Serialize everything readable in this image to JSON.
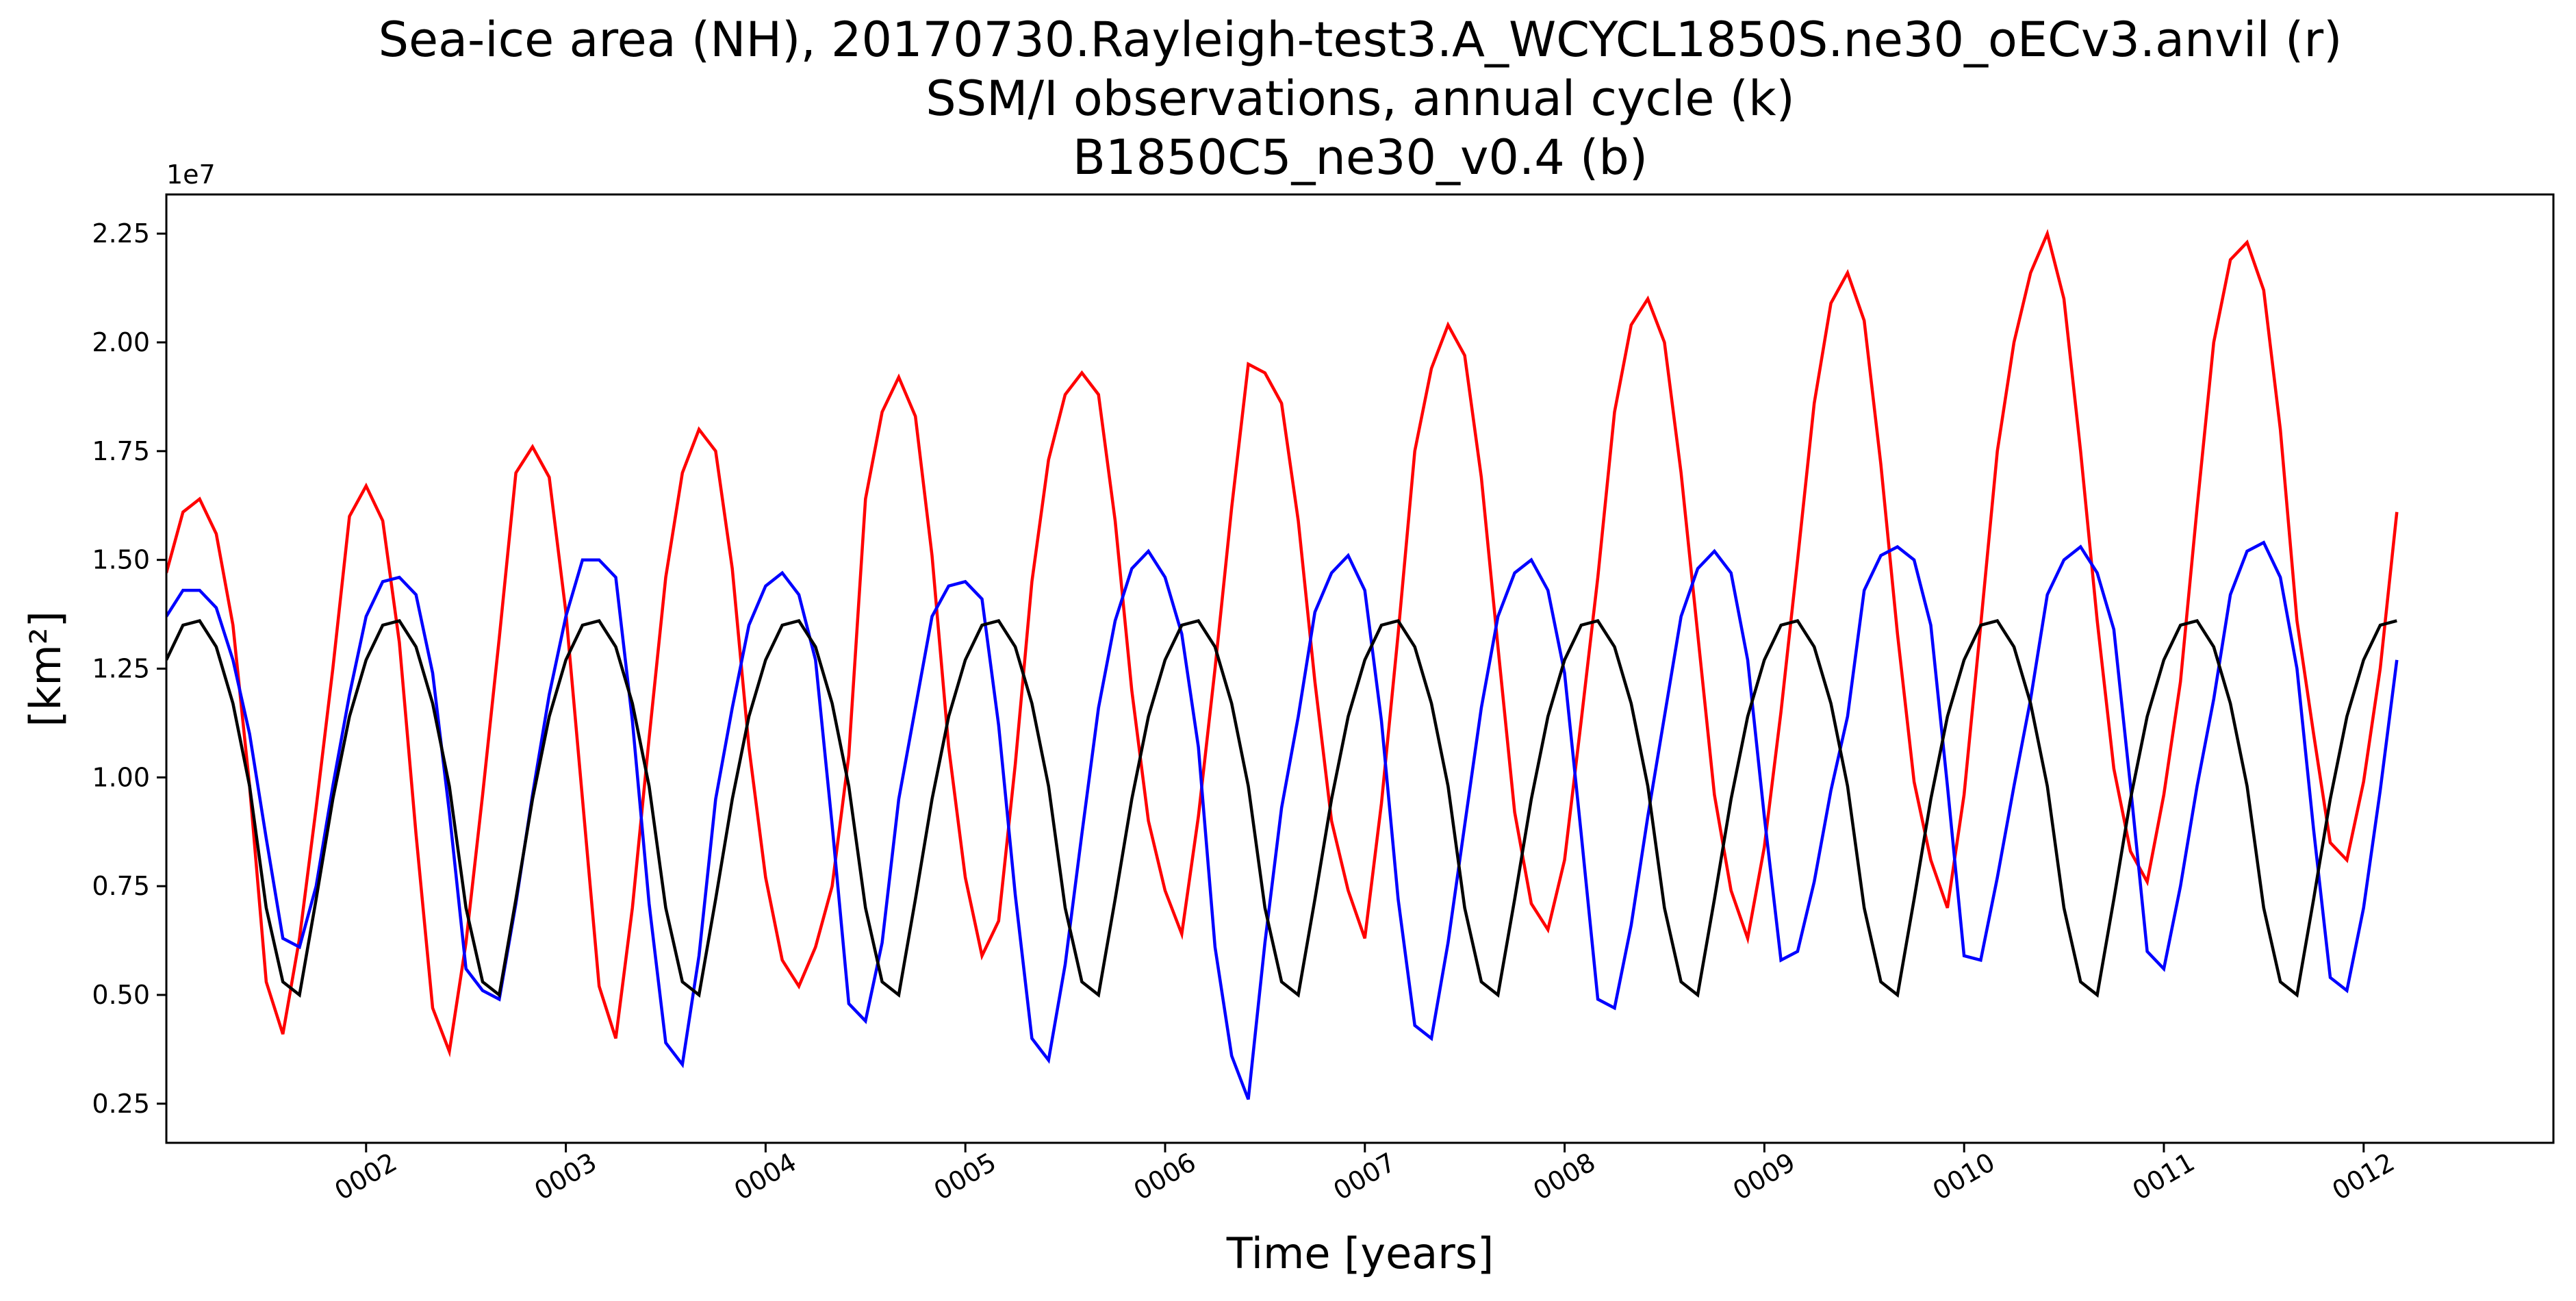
{
  "chart_data": {
    "type": "line",
    "title_lines": [
      "Sea-ice area (NH), 20170730.Rayleigh-test3.A_WCYCL1850S.ne30_oECv3.anvil (r)",
      "SSM/I observations, annual cycle (k)",
      "B1850C5_ne30_v0.4 (b)"
    ],
    "xlabel": "Time [years]",
    "ylabel": "[km²]",
    "y_offset_label": "1e7",
    "y_scale": 10000000,
    "xlim": [
      1.0,
      12.95
    ],
    "ylim": [
      0.16,
      2.34
    ],
    "grid": false,
    "x_ticks": [
      {
        "value": 2,
        "label": "0002"
      },
      {
        "value": 3,
        "label": "0003"
      },
      {
        "value": 4,
        "label": "0004"
      },
      {
        "value": 5,
        "label": "0005"
      },
      {
        "value": 6,
        "label": "0006"
      },
      {
        "value": 7,
        "label": "0007"
      },
      {
        "value": 8,
        "label": "0008"
      },
      {
        "value": 9,
        "label": "0009"
      },
      {
        "value": 10,
        "label": "0010"
      },
      {
        "value": 11,
        "label": "0011"
      },
      {
        "value": 12,
        "label": "0012"
      }
    ],
    "y_ticks": [
      {
        "value": 0.25,
        "label": "0.25"
      },
      {
        "value": 0.5,
        "label": "0.50"
      },
      {
        "value": 0.75,
        "label": "0.75"
      },
      {
        "value": 1.0,
        "label": "1.00"
      },
      {
        "value": 1.25,
        "label": "1.25"
      },
      {
        "value": 1.5,
        "label": "1.50"
      },
      {
        "value": 1.75,
        "label": "1.75"
      },
      {
        "value": 2.0,
        "label": "2.00"
      },
      {
        "value": 2.25,
        "label": "2.25"
      }
    ],
    "x_start": 1.0,
    "x_step": 0.08333,
    "series": [
      {
        "color": "#ff0000",
        "values": [
          1.47,
          1.61,
          1.64,
          1.56,
          1.35,
          0.98,
          0.53,
          0.41,
          0.63,
          0.93,
          1.25,
          1.6,
          1.67,
          1.59,
          1.31,
          0.87,
          0.47,
          0.37,
          0.62,
          0.96,
          1.32,
          1.7,
          1.76,
          1.69,
          1.38,
          0.95,
          0.52,
          0.4,
          0.7,
          1.09,
          1.46,
          1.7,
          1.8,
          1.75,
          1.48,
          1.07,
          0.77,
          0.58,
          0.52,
          0.61,
          0.75,
          1.05,
          1.64,
          1.84,
          1.92,
          1.83,
          1.51,
          1.07,
          0.77,
          0.59,
          0.67,
          1.03,
          1.45,
          1.73,
          1.88,
          1.93,
          1.88,
          1.59,
          1.2,
          0.9,
          0.74,
          0.64,
          0.91,
          1.25,
          1.62,
          1.95,
          1.93,
          1.86,
          1.59,
          1.22,
          0.9,
          0.74,
          0.63,
          0.94,
          1.33,
          1.75,
          1.94,
          2.04,
          1.97,
          1.69,
          1.3,
          0.92,
          0.71,
          0.65,
          0.81,
          1.13,
          1.46,
          1.84,
          2.04,
          2.1,
          2.0,
          1.7,
          1.33,
          0.96,
          0.74,
          0.63,
          0.84,
          1.15,
          1.5,
          1.86,
          2.09,
          2.16,
          2.05,
          1.72,
          1.33,
          0.99,
          0.81,
          0.7,
          0.96,
          1.35,
          1.75,
          2.0,
          2.16,
          2.25,
          2.1,
          1.75,
          1.36,
          1.02,
          0.83,
          0.76,
          0.96,
          1.22,
          1.62,
          2.0,
          2.19,
          2.23,
          2.12,
          1.8,
          1.36,
          1.1,
          0.85,
          0.81,
          0.99,
          1.25,
          1.61
        ]
      },
      {
        "color": "#0000ff",
        "values": [
          1.37,
          1.43,
          1.43,
          1.39,
          1.27,
          1.1,
          0.86,
          0.63,
          0.61,
          0.75,
          0.98,
          1.19,
          1.37,
          1.45,
          1.46,
          1.42,
          1.24,
          0.92,
          0.56,
          0.51,
          0.49,
          0.71,
          0.96,
          1.19,
          1.37,
          1.5,
          1.5,
          1.46,
          1.13,
          0.71,
          0.39,
          0.34,
          0.59,
          0.95,
          1.16,
          1.35,
          1.44,
          1.47,
          1.42,
          1.27,
          0.89,
          0.48,
          0.44,
          0.62,
          0.95,
          1.16,
          1.37,
          1.44,
          1.45,
          1.41,
          1.12,
          0.73,
          0.4,
          0.35,
          0.57,
          0.87,
          1.16,
          1.36,
          1.48,
          1.52,
          1.46,
          1.33,
          1.07,
          0.61,
          0.36,
          0.26,
          0.62,
          0.93,
          1.14,
          1.38,
          1.47,
          1.51,
          1.43,
          1.13,
          0.72,
          0.43,
          0.4,
          0.62,
          0.89,
          1.16,
          1.37,
          1.47,
          1.5,
          1.43,
          1.24,
          0.87,
          0.49,
          0.47,
          0.66,
          0.91,
          1.14,
          1.37,
          1.48,
          1.52,
          1.47,
          1.27,
          0.91,
          0.58,
          0.6,
          0.76,
          0.97,
          1.14,
          1.43,
          1.51,
          1.53,
          1.5,
          1.35,
          0.98,
          0.59,
          0.58,
          0.77,
          0.98,
          1.18,
          1.42,
          1.5,
          1.53,
          1.47,
          1.34,
          0.98,
          0.6,
          0.56,
          0.75,
          0.98,
          1.18,
          1.42,
          1.52,
          1.54,
          1.46,
          1.25,
          0.88,
          0.54,
          0.51,
          0.7,
          0.97,
          1.27
        ]
      },
      {
        "color": "#000000",
        "values": [
          1.27,
          1.35,
          1.36,
          1.3,
          1.17,
          0.98,
          0.7,
          0.53,
          0.5,
          0.72,
          0.95,
          1.14,
          1.27,
          1.35,
          1.36,
          1.3,
          1.17,
          0.98,
          0.7,
          0.53,
          0.5,
          0.72,
          0.95,
          1.14,
          1.27,
          1.35,
          1.36,
          1.3,
          1.17,
          0.98,
          0.7,
          0.53,
          0.5,
          0.72,
          0.95,
          1.14,
          1.27,
          1.35,
          1.36,
          1.3,
          1.17,
          0.98,
          0.7,
          0.53,
          0.5,
          0.72,
          0.95,
          1.14,
          1.27,
          1.35,
          1.36,
          1.3,
          1.17,
          0.98,
          0.7,
          0.53,
          0.5,
          0.72,
          0.95,
          1.14,
          1.27,
          1.35,
          1.36,
          1.3,
          1.17,
          0.98,
          0.7,
          0.53,
          0.5,
          0.72,
          0.95,
          1.14,
          1.27,
          1.35,
          1.36,
          1.3,
          1.17,
          0.98,
          0.7,
          0.53,
          0.5,
          0.72,
          0.95,
          1.14,
          1.27,
          1.35,
          1.36,
          1.3,
          1.17,
          0.98,
          0.7,
          0.53,
          0.5,
          0.72,
          0.95,
          1.14,
          1.27,
          1.35,
          1.36,
          1.3,
          1.17,
          0.98,
          0.7,
          0.53,
          0.5,
          0.72,
          0.95,
          1.14,
          1.27,
          1.35,
          1.36,
          1.3,
          1.17,
          0.98,
          0.7,
          0.53,
          0.5,
          0.72,
          0.95,
          1.14,
          1.27,
          1.35,
          1.36,
          1.3,
          1.17,
          0.98,
          0.7,
          0.53,
          0.5,
          0.72,
          0.95,
          1.14,
          1.27,
          1.35,
          1.36
        ]
      }
    ]
  }
}
